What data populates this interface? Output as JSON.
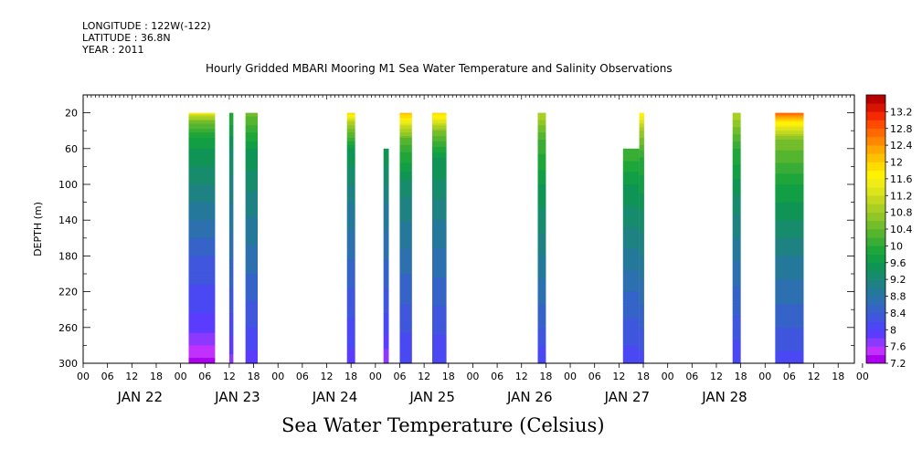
{
  "header": {
    "longitude": "LONGITUDE : 122W(-122)",
    "latitude": "LATITUDE : 36.8N",
    "year": "YEAR : 2011",
    "title": "Hourly Gridded MBARI Mooring M1 Sea Water Temperature and Salinity Observations"
  },
  "footer_label": "Sea Water Temperature (Celsius)",
  "chart_data": {
    "type": "heatmap",
    "title": "Hourly Gridded MBARI Mooring M1 Sea Water Temperature and Salinity Observations",
    "xlabel": "",
    "ylabel": "DEPTH (m)",
    "x_range_hours": [
      -12,
      178
    ],
    "y_range_depth_m": [
      300,
      0
    ],
    "y_ticks": [
      20,
      60,
      100,
      140,
      180,
      220,
      260,
      300
    ],
    "x_hour_ticks": [
      "00",
      "06",
      "12",
      "18",
      "00",
      "06",
      "12",
      "18",
      "00",
      "06",
      "12",
      "18",
      "00",
      "06",
      "12",
      "18",
      "00",
      "06",
      "12",
      "18",
      "00",
      "06",
      "12",
      "18",
      "00",
      "06",
      "12",
      "18",
      "00",
      "06",
      "12",
      "18",
      "00"
    ],
    "day_labels": [
      "JAN 22",
      "JAN 23",
      "JAN 24",
      "JAN 25",
      "JAN 26",
      "JAN 27",
      "JAN 28"
    ],
    "colorbar": {
      "min": 7.2,
      "max": 13.4,
      "step": 0.2,
      "labels": [
        "13.2",
        "12.8",
        "12.4",
        "12",
        "11.6",
        "11.2",
        "10.8",
        "10.4",
        "10",
        "9.6",
        "9.2",
        "8.8",
        "8.4",
        "8",
        "7.6",
        "7.2"
      ],
      "colors": [
        "#aa00ee",
        "#c030ff",
        "#8c38ff",
        "#5b3cff",
        "#4a48f2",
        "#3f56dd",
        "#3563c8",
        "#2c70b0",
        "#24789a",
        "#1e8283",
        "#168c6c",
        "#109456",
        "#129e44",
        "#1fa63a",
        "#39ad35",
        "#55b52f",
        "#73bd2b",
        "#90c626",
        "#a9cf22",
        "#c3d81e",
        "#dce41a",
        "#f2ec16",
        "#fff200",
        "#ffdb00",
        "#ffc200",
        "#ffa600",
        "#ff8800",
        "#ff6a00",
        "#ff4a00",
        "#f52a00",
        "#d81400",
        "#b80000"
      ]
    },
    "columns": [
      {
        "start_hour": 14,
        "end_hour": 20.5,
        "top_depth": 20,
        "profile": [
          [
            20,
            11.5
          ],
          [
            30,
            10.5
          ],
          [
            50,
            9.7
          ],
          [
            100,
            9.2
          ],
          [
            180,
            8.4
          ],
          [
            260,
            7.9
          ],
          [
            300,
            7.3
          ]
        ]
      },
      {
        "start_hour": 24,
        "end_hour": 25,
        "top_depth": 20,
        "profile": [
          [
            20,
            10.0
          ],
          [
            60,
            9.4
          ],
          [
            120,
            9.0
          ],
          [
            200,
            8.5
          ],
          [
            260,
            8.1
          ],
          [
            300,
            7.7
          ]
        ]
      },
      {
        "start_hour": 28,
        "end_hour": 31,
        "top_depth": 20,
        "profile": [
          [
            20,
            10.5
          ],
          [
            60,
            9.6
          ],
          [
            120,
            9.1
          ],
          [
            200,
            8.6
          ],
          [
            260,
            8.2
          ],
          [
            300,
            7.9
          ]
        ]
      },
      {
        "start_hour": 53,
        "end_hour": 55,
        "top_depth": 20,
        "profile": [
          [
            20,
            12.0
          ],
          [
            30,
            11.0
          ],
          [
            60,
            9.6
          ],
          [
            120,
            9.0
          ],
          [
            200,
            8.5
          ],
          [
            300,
            7.9
          ]
        ]
      },
      {
        "start_hour": 62,
        "end_hour": 63.3,
        "top_depth": 60,
        "profile": [
          [
            60,
            9.6
          ],
          [
            120,
            9.0
          ],
          [
            200,
            8.5
          ],
          [
            260,
            8.1
          ],
          [
            300,
            7.6
          ]
        ]
      },
      {
        "start_hour": 66,
        "end_hour": 69,
        "top_depth": 20,
        "profile": [
          [
            20,
            12.2
          ],
          [
            30,
            11.5
          ],
          [
            50,
            10.3
          ],
          [
            100,
            9.3
          ],
          [
            200,
            8.6
          ],
          [
            300,
            8.0
          ]
        ]
      },
      {
        "start_hour": 74,
        "end_hour": 77.5,
        "top_depth": 20,
        "profile": [
          [
            20,
            12.0
          ],
          [
            40,
            10.6
          ],
          [
            70,
            9.6
          ],
          [
            140,
            9.0
          ],
          [
            220,
            8.5
          ],
          [
            300,
            8.0
          ]
        ]
      },
      {
        "start_hour": 100,
        "end_hour": 102,
        "top_depth": 20,
        "profile": [
          [
            20,
            11.0
          ],
          [
            50,
            10.2
          ],
          [
            100,
            9.6
          ],
          [
            180,
            9.0
          ],
          [
            260,
            8.4
          ],
          [
            300,
            8.0
          ]
        ]
      },
      {
        "start_hour": 121,
        "end_hour": 125,
        "top_depth": 60,
        "profile": [
          [
            60,
            10.2
          ],
          [
            100,
            9.6
          ],
          [
            160,
            9.1
          ],
          [
            220,
            8.6
          ],
          [
            280,
            8.2
          ],
          [
            300,
            8.0
          ]
        ]
      },
      {
        "start_hour": 125,
        "end_hour": 126.2,
        "top_depth": 20,
        "profile": [
          [
            20,
            11.8
          ],
          [
            40,
            10.8
          ],
          [
            70,
            10.0
          ],
          [
            140,
            9.3
          ],
          [
            220,
            8.7
          ],
          [
            300,
            8.1
          ]
        ]
      },
      {
        "start_hour": 148,
        "end_hour": 150,
        "top_depth": 20,
        "profile": [
          [
            20,
            11.0
          ],
          [
            60,
            10.0
          ],
          [
            120,
            9.3
          ],
          [
            200,
            8.7
          ],
          [
            260,
            8.3
          ],
          [
            300,
            8.0
          ]
        ]
      },
      {
        "start_hour": 158.5,
        "end_hour": 165.5,
        "top_depth": 20,
        "profile": [
          [
            20,
            12.8
          ],
          [
            30,
            11.8
          ],
          [
            50,
            10.6
          ],
          [
            100,
            9.8
          ],
          [
            180,
            9.0
          ],
          [
            260,
            8.4
          ],
          [
            300,
            8.1
          ]
        ]
      }
    ]
  }
}
